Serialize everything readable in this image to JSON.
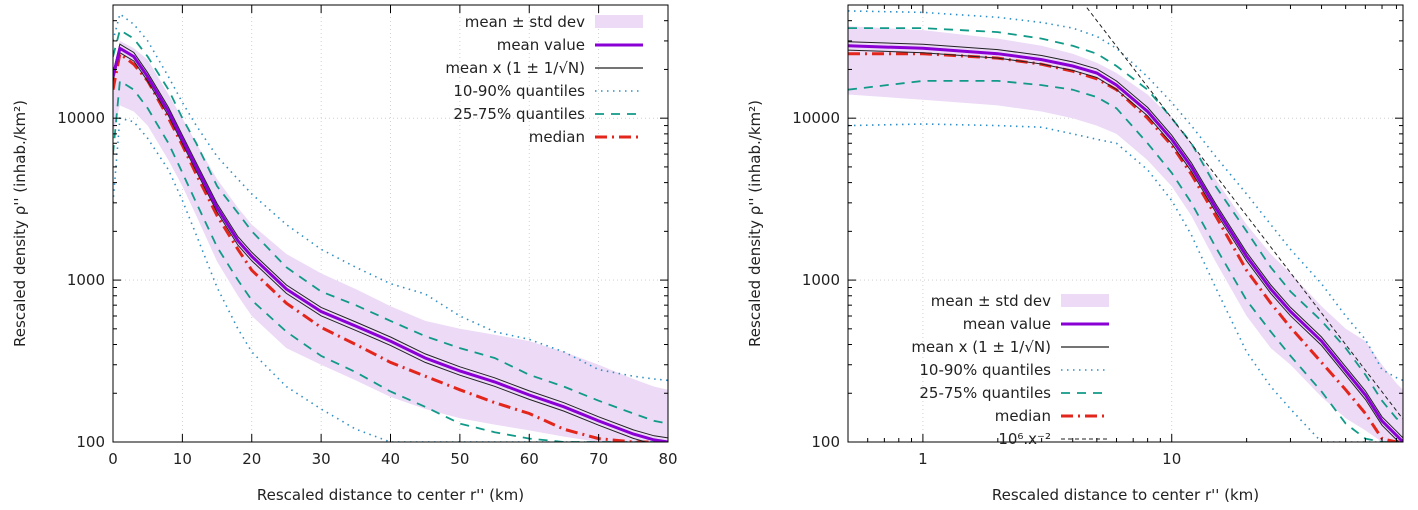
{
  "chart_data": [
    {
      "type": "line",
      "xscale": "linear",
      "yscale": "log",
      "xlim": [
        0,
        80
      ],
      "ylim": [
        100,
        50000
      ],
      "xlabel": "Rescaled distance to center r'' (km)",
      "ylabel": "Rescaled density ρ'' (inhab./km²)",
      "xticks": [
        "0",
        "10",
        "20",
        "30",
        "40",
        "50",
        "60",
        "70",
        "80"
      ],
      "yticks": [
        "100",
        "1000",
        "10000"
      ],
      "grid": true,
      "legend_position": "top-right",
      "legend": [
        "mean ± std dev",
        "mean value",
        "mean x (1 ± 1/√N)",
        "10-90% quantiles",
        "25-75% quantiles",
        "median"
      ],
      "x": [
        0,
        1,
        3,
        5,
        8,
        10,
        12,
        15,
        18,
        20,
        25,
        30,
        35,
        40,
        45,
        50,
        55,
        60,
        65,
        70,
        75,
        78,
        80
      ],
      "series": [
        {
          "name": "mean ± std dev (upper)",
          "values": [
            20000,
            30000,
            27000,
            23000,
            14000,
            10000,
            7000,
            4200,
            2800,
            2200,
            1450,
            1100,
            880,
            690,
            560,
            500,
            460,
            420,
            360,
            300,
            245,
            220,
            210
          ]
        },
        {
          "name": "mean ± std dev (lower)",
          "values": [
            8000,
            12000,
            11000,
            9000,
            5500,
            3800,
            2500,
            1300,
            800,
            600,
            380,
            300,
            240,
            190,
            160,
            140,
            128,
            118,
            108,
            100,
            100,
            100,
            100
          ]
        },
        {
          "name": "mean value",
          "values": [
            18000,
            27000,
            24000,
            18000,
            11000,
            7400,
            5000,
            2800,
            1750,
            1400,
            880,
            640,
            520,
            420,
            330,
            275,
            235,
            195,
            165,
            135,
            112,
            103,
            100
          ]
        },
        {
          "name": "10-90% quantiles (upper)",
          "values": [
            30000,
            44000,
            38000,
            30000,
            18000,
            12500,
            9000,
            5800,
            4200,
            3400,
            2200,
            1550,
            1200,
            950,
            820,
            600,
            480,
            430,
            360,
            280,
            255,
            245,
            240
          ]
        },
        {
          "name": "10-90% quantiles (lower)",
          "values": [
            3000,
            10000,
            9500,
            7500,
            4800,
            3100,
            1900,
            900,
            500,
            360,
            220,
            160,
            120,
            100,
            100,
            100,
            100,
            100,
            100,
            100,
            100,
            100,
            100
          ]
        },
        {
          "name": "25-75% quantiles (upper)",
          "values": [
            24000,
            35000,
            31000,
            24000,
            15000,
            10000,
            7000,
            3800,
            2600,
            2000,
            1200,
            850,
            700,
            560,
            450,
            380,
            330,
            260,
            220,
            180,
            150,
            135,
            130
          ]
        },
        {
          "name": "25-75% quantiles (lower)",
          "values": [
            6000,
            17000,
            15000,
            11500,
            7000,
            4600,
            3000,
            1600,
            1000,
            750,
            480,
            340,
            270,
            205,
            165,
            130,
            115,
            105,
            100,
            100,
            100,
            100,
            100
          ]
        },
        {
          "name": "median",
          "values": [
            15000,
            25000,
            21500,
            17000,
            10000,
            6800,
            4500,
            2500,
            1550,
            1150,
            720,
            510,
            400,
            310,
            255,
            210,
            175,
            150,
            120,
            105,
            100,
            100,
            100
          ]
        }
      ]
    },
    {
      "type": "line",
      "xscale": "log",
      "yscale": "log",
      "xlim": [
        0.5,
        85
      ],
      "ylim": [
        100,
        50000
      ],
      "xlabel": "Rescaled distance to center r'' (km)",
      "ylabel": "Rescaled density ρ'' (inhab./km²)",
      "xticks": [
        "1",
        "10"
      ],
      "yticks": [
        "100",
        "1000",
        "10000"
      ],
      "grid": true,
      "legend_position": "bottom-left",
      "legend": [
        "mean ± std dev",
        "mean value",
        "mean x (1 ± 1/√N)",
        "10-90% quantiles",
        "25-75% quantiles",
        "median",
        "10⁶.x⁻²"
      ],
      "reference_line": {
        "name": "10⁶.x⁻²",
        "coefficient": 1000000,
        "exponent": -2
      },
      "x": [
        0.5,
        1,
        2,
        3,
        4,
        5,
        6,
        8,
        10,
        12,
        15,
        20,
        25,
        30,
        40,
        50,
        60,
        70,
        80,
        85
      ],
      "series": [
        {
          "name": "mean ± std dev (upper)",
          "values": [
            37000,
            35000,
            31000,
            28000,
            25000,
            22000,
            19000,
            14000,
            10000,
            7000,
            4200,
            2200,
            1450,
            1100,
            690,
            500,
            420,
            300,
            230,
            210
          ]
        },
        {
          "name": "mean ± std dev (lower)",
          "values": [
            14000,
            13000,
            12000,
            11000,
            10000,
            9000,
            8000,
            5500,
            3800,
            2500,
            1300,
            600,
            380,
            300,
            190,
            140,
            118,
            100,
            100,
            100
          ]
        },
        {
          "name": "mean value",
          "values": [
            28000,
            27000,
            25000,
            23000,
            21000,
            19000,
            16000,
            11000,
            7400,
            5000,
            2800,
            1400,
            880,
            640,
            420,
            275,
            195,
            135,
            110,
            100
          ]
        },
        {
          "name": "10-90% quantiles (upper)",
          "values": [
            46000,
            45000,
            42000,
            39000,
            36000,
            32000,
            27000,
            18000,
            12500,
            9000,
            5800,
            3400,
            2200,
            1550,
            950,
            600,
            430,
            280,
            250,
            240
          ]
        },
        {
          "name": "10-90% quantiles (lower)",
          "values": [
            9000,
            9200,
            9000,
            8800,
            8000,
            7400,
            7000,
            4800,
            3100,
            1900,
            900,
            360,
            220,
            160,
            100,
            100,
            100,
            100,
            100,
            100
          ]
        },
        {
          "name": "25-75% quantiles (upper)",
          "values": [
            36000,
            36000,
            34000,
            31000,
            28000,
            25000,
            21000,
            15000,
            10000,
            7000,
            3800,
            2000,
            1200,
            850,
            560,
            380,
            260,
            180,
            140,
            130
          ]
        },
        {
          "name": "25-75% quantiles (lower)",
          "values": [
            15000,
            17000,
            17000,
            16000,
            15000,
            13500,
            11500,
            7000,
            4600,
            3000,
            1600,
            750,
            480,
            340,
            205,
            130,
            105,
            100,
            100,
            100
          ]
        },
        {
          "name": "median",
          "values": [
            25000,
            25000,
            23500,
            21500,
            19500,
            17500,
            15000,
            10000,
            6800,
            4500,
            2500,
            1150,
            720,
            510,
            310,
            210,
            150,
            105,
            100,
            100
          ]
        }
      ]
    }
  ],
  "colors": {
    "band": "#ecdaf6",
    "mean": "#8a00d4",
    "mean_err": "#222222",
    "q10": "#2f8fc4",
    "q25": "#119a88",
    "median": "#e3261c",
    "ref": "#222222"
  }
}
